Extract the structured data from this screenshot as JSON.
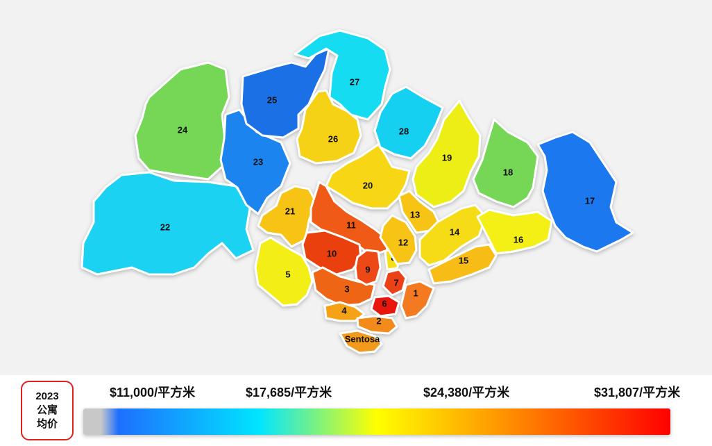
{
  "legend": {
    "title_lines": [
      "2023",
      "公寓",
      "均价"
    ],
    "ticks": [
      "$11,000/平方米",
      "$17,685/平方米",
      "$24,380/平方米",
      "$31,807/平方米"
    ],
    "gradient_colors": [
      "#c8c8c8",
      "#1e6fff",
      "#00e5ff",
      "#ffff00",
      "#ffa500",
      "#ff0000"
    ]
  },
  "districts": [
    {
      "label": "1",
      "color": "#f47a20"
    },
    {
      "label": "2",
      "color": "#f28a1c"
    },
    {
      "label": "3",
      "color": "#ee6512"
    },
    {
      "label": "4",
      "color": "#f6a216"
    },
    {
      "label": "5",
      "color": "#f3ee14"
    },
    {
      "label": "6",
      "color": "#e8120c"
    },
    {
      "label": "7",
      "color": "#ec3f12"
    },
    {
      "label": "8",
      "color": "#f5e012"
    },
    {
      "label": "9",
      "color": "#ec4a12"
    },
    {
      "label": "10",
      "color": "#ea4010"
    },
    {
      "label": "11",
      "color": "#ef5a14"
    },
    {
      "label": "12",
      "color": "#f7c416"
    },
    {
      "label": "13",
      "color": "#f7c416"
    },
    {
      "label": "14",
      "color": "#f5dc14"
    },
    {
      "label": "15",
      "color": "#f7bc16"
    },
    {
      "label": "16",
      "color": "#f4f018"
    },
    {
      "label": "17",
      "color": "#1a78ee"
    },
    {
      "label": "18",
      "color": "#76d654"
    },
    {
      "label": "19",
      "color": "#ecee18"
    },
    {
      "label": "20",
      "color": "#f7d614"
    },
    {
      "label": "21",
      "color": "#f7c416"
    },
    {
      "label": "22",
      "color": "#1ad2f2"
    },
    {
      "label": "23",
      "color": "#1a84ee"
    },
    {
      "label": "24",
      "color": "#76d654"
    },
    {
      "label": "25",
      "color": "#1a70e6"
    },
    {
      "label": "26",
      "color": "#f5d214"
    },
    {
      "label": "27",
      "color": "#18dcf2"
    },
    {
      "label": "28",
      "color": "#18d0f2"
    },
    {
      "label": "Sentosa",
      "color": "#f29a1c"
    }
  ]
}
